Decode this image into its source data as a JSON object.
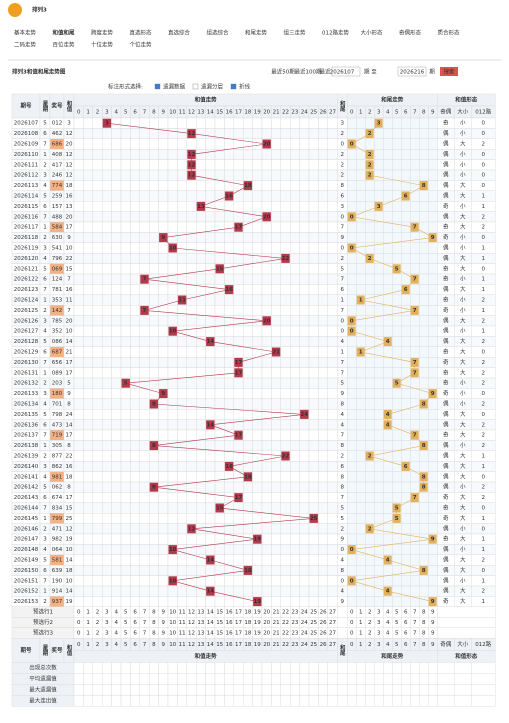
{
  "header": {
    "logo": "排列3",
    "nav": [
      "基本走势",
      "和值和尾",
      "跨度走势",
      "直选形态",
      "直选综合",
      "组选综合",
      "和尾走势",
      "组三走势",
      "012路走势",
      "大小形态",
      "奇偶形态",
      "质合形态",
      "二码走势",
      "百位走势",
      "十位走势",
      "个位走势"
    ]
  },
  "toolbar": {
    "title": "排列3和值和尾走势图",
    "links": [
      "最近50期",
      "最近100期",
      "最近120期"
    ],
    "from": "2026107",
    "to_label": "期 至",
    "to": "2026216",
    "period": "期",
    "search": "搜索"
  },
  "options": {
    "label": "标注形式选择:",
    "items": [
      "遗漏数据",
      "遗漏分层",
      "折线"
    ]
  },
  "table": {
    "columns": [
      "期号",
      "星期",
      "奖号",
      "和值",
      "和尾"
    ],
    "sections": [
      "和值走势",
      "和尾走势",
      "和值形态"
    ],
    "shape_columns": [
      "奇偶",
      "大小",
      "012路"
    ],
    "sum_columns": [
      0,
      1,
      2,
      3,
      4,
      5,
      6,
      7,
      8,
      9,
      10,
      11,
      12,
      13,
      14,
      15,
      16,
      17,
      18,
      19,
      20,
      21,
      22,
      23,
      24,
      25,
      26,
      27
    ],
    "tail_columns": [
      0,
      1,
      2,
      3,
      4,
      5,
      6,
      7,
      8,
      9
    ],
    "rows": [
      [
        "2026107",
        5,
        "012",
        3,
        3,
        "奇",
        "小",
        0
      ],
      [
        "2026108",
        6,
        "462",
        12,
        2,
        "偶",
        "小",
        0
      ],
      [
        "2026109",
        7,
        "686",
        20,
        0,
        "偶",
        "大",
        2
      ],
      [
        "2026110",
        1,
        "408",
        12,
        2,
        "偶",
        "小",
        0
      ],
      [
        "2026111",
        2,
        "417",
        12,
        2,
        "偶",
        "小",
        0
      ],
      [
        "2026112",
        3,
        "246",
        12,
        2,
        "偶",
        "小",
        0
      ],
      [
        "2026113",
        4,
        "774",
        18,
        8,
        "偶",
        "大",
        0
      ],
      [
        "2026114",
        5,
        "259",
        16,
        6,
        "偶",
        "大",
        1
      ],
      [
        "2026115",
        6,
        "157",
        13,
        3,
        "奇",
        "小",
        1
      ],
      [
        "2026116",
        7,
        "488",
        20,
        0,
        "偶",
        "大",
        2
      ],
      [
        "2026117",
        1,
        "584",
        17,
        7,
        "奇",
        "大",
        2
      ],
      [
        "2026118",
        2,
        "630",
        9,
        9,
        "奇",
        "小",
        0
      ],
      [
        "2026119",
        3,
        "541",
        10,
        0,
        "偶",
        "小",
        1
      ],
      [
        "2026120",
        4,
        "796",
        22,
        2,
        "偶",
        "大",
        1
      ],
      [
        "2026121",
        5,
        "069",
        15,
        5,
        "奇",
        "大",
        0
      ],
      [
        "2026122",
        6,
        "124",
        7,
        7,
        "奇",
        "小",
        1
      ],
      [
        "2026123",
        7,
        "781",
        16,
        6,
        "偶",
        "大",
        1
      ],
      [
        "2026124",
        1,
        "353",
        11,
        1,
        "奇",
        "小",
        2
      ],
      [
        "2026125",
        2,
        "142",
        7,
        7,
        "奇",
        "小",
        1
      ],
      [
        "2026126",
        3,
        "785",
        20,
        0,
        "偶",
        "大",
        2
      ],
      [
        "2026127",
        4,
        "352",
        10,
        0,
        "偶",
        "小",
        1
      ],
      [
        "2026128",
        5,
        "086",
        14,
        4,
        "偶",
        "大",
        2
      ],
      [
        "2026129",
        6,
        "687",
        21,
        1,
        "奇",
        "大",
        0
      ],
      [
        "2026130",
        7,
        "656",
        17,
        7,
        "奇",
        "大",
        2
      ],
      [
        "2026131",
        1,
        "089",
        17,
        7,
        "奇",
        "大",
        2
      ],
      [
        "2026132",
        2,
        "203",
        5,
        5,
        "奇",
        "小",
        2
      ],
      [
        "2026133",
        3,
        "180",
        9,
        9,
        "奇",
        "小",
        0
      ],
      [
        "2026134",
        4,
        "701",
        8,
        8,
        "偶",
        "小",
        2
      ],
      [
        "2026135",
        5,
        "798",
        24,
        4,
        "偶",
        "大",
        0
      ],
      [
        "2026136",
        6,
        "473",
        14,
        4,
        "偶",
        "大",
        2
      ],
      [
        "2026137",
        7,
        "719",
        17,
        7,
        "奇",
        "大",
        2
      ],
      [
        "2026138",
        1,
        "305",
        8,
        8,
        "偶",
        "小",
        2
      ],
      [
        "2026139",
        2,
        "877",
        22,
        2,
        "偶",
        "大",
        1
      ],
      [
        "2026140",
        3,
        "862",
        16,
        6,
        "偶",
        "大",
        1
      ],
      [
        "2026141",
        4,
        "981",
        18,
        8,
        "偶",
        "大",
        0
      ],
      [
        "2026142",
        5,
        "062",
        8,
        8,
        "偶",
        "小",
        2
      ],
      [
        "2026143",
        6,
        "674",
        17,
        7,
        "奇",
        "大",
        2
      ],
      [
        "2026144",
        7,
        "834",
        15,
        5,
        "奇",
        "大",
        0
      ],
      [
        "2026145",
        1,
        "799",
        25,
        5,
        "奇",
        "大",
        1
      ],
      [
        "2026146",
        2,
        "471",
        12,
        2,
        "偶",
        "小",
        0
      ],
      [
        "2026147",
        3,
        "982",
        19,
        9,
        "奇",
        "大",
        1
      ],
      [
        "2026148",
        4,
        "064",
        10,
        0,
        "偶",
        "小",
        1
      ],
      [
        "2026149",
        5,
        "581",
        14,
        4,
        "偶",
        "大",
        2
      ],
      [
        "2026150",
        6,
        "639",
        18,
        8,
        "偶",
        "大",
        0
      ],
      [
        "2026151",
        7,
        "190",
        10,
        0,
        "偶",
        "小",
        1
      ],
      [
        "2026152",
        1,
        "914",
        14,
        4,
        "偶",
        "大",
        2
      ],
      [
        "2026153",
        2,
        "937",
        19,
        9,
        "奇",
        "大",
        1
      ]
    ],
    "preselect": [
      "预选行1",
      "预选行2",
      "预选行3"
    ],
    "stats": [
      "出现总次数",
      "平均遗漏值",
      "最大遗漏值",
      "最大连出值"
    ]
  }
}
